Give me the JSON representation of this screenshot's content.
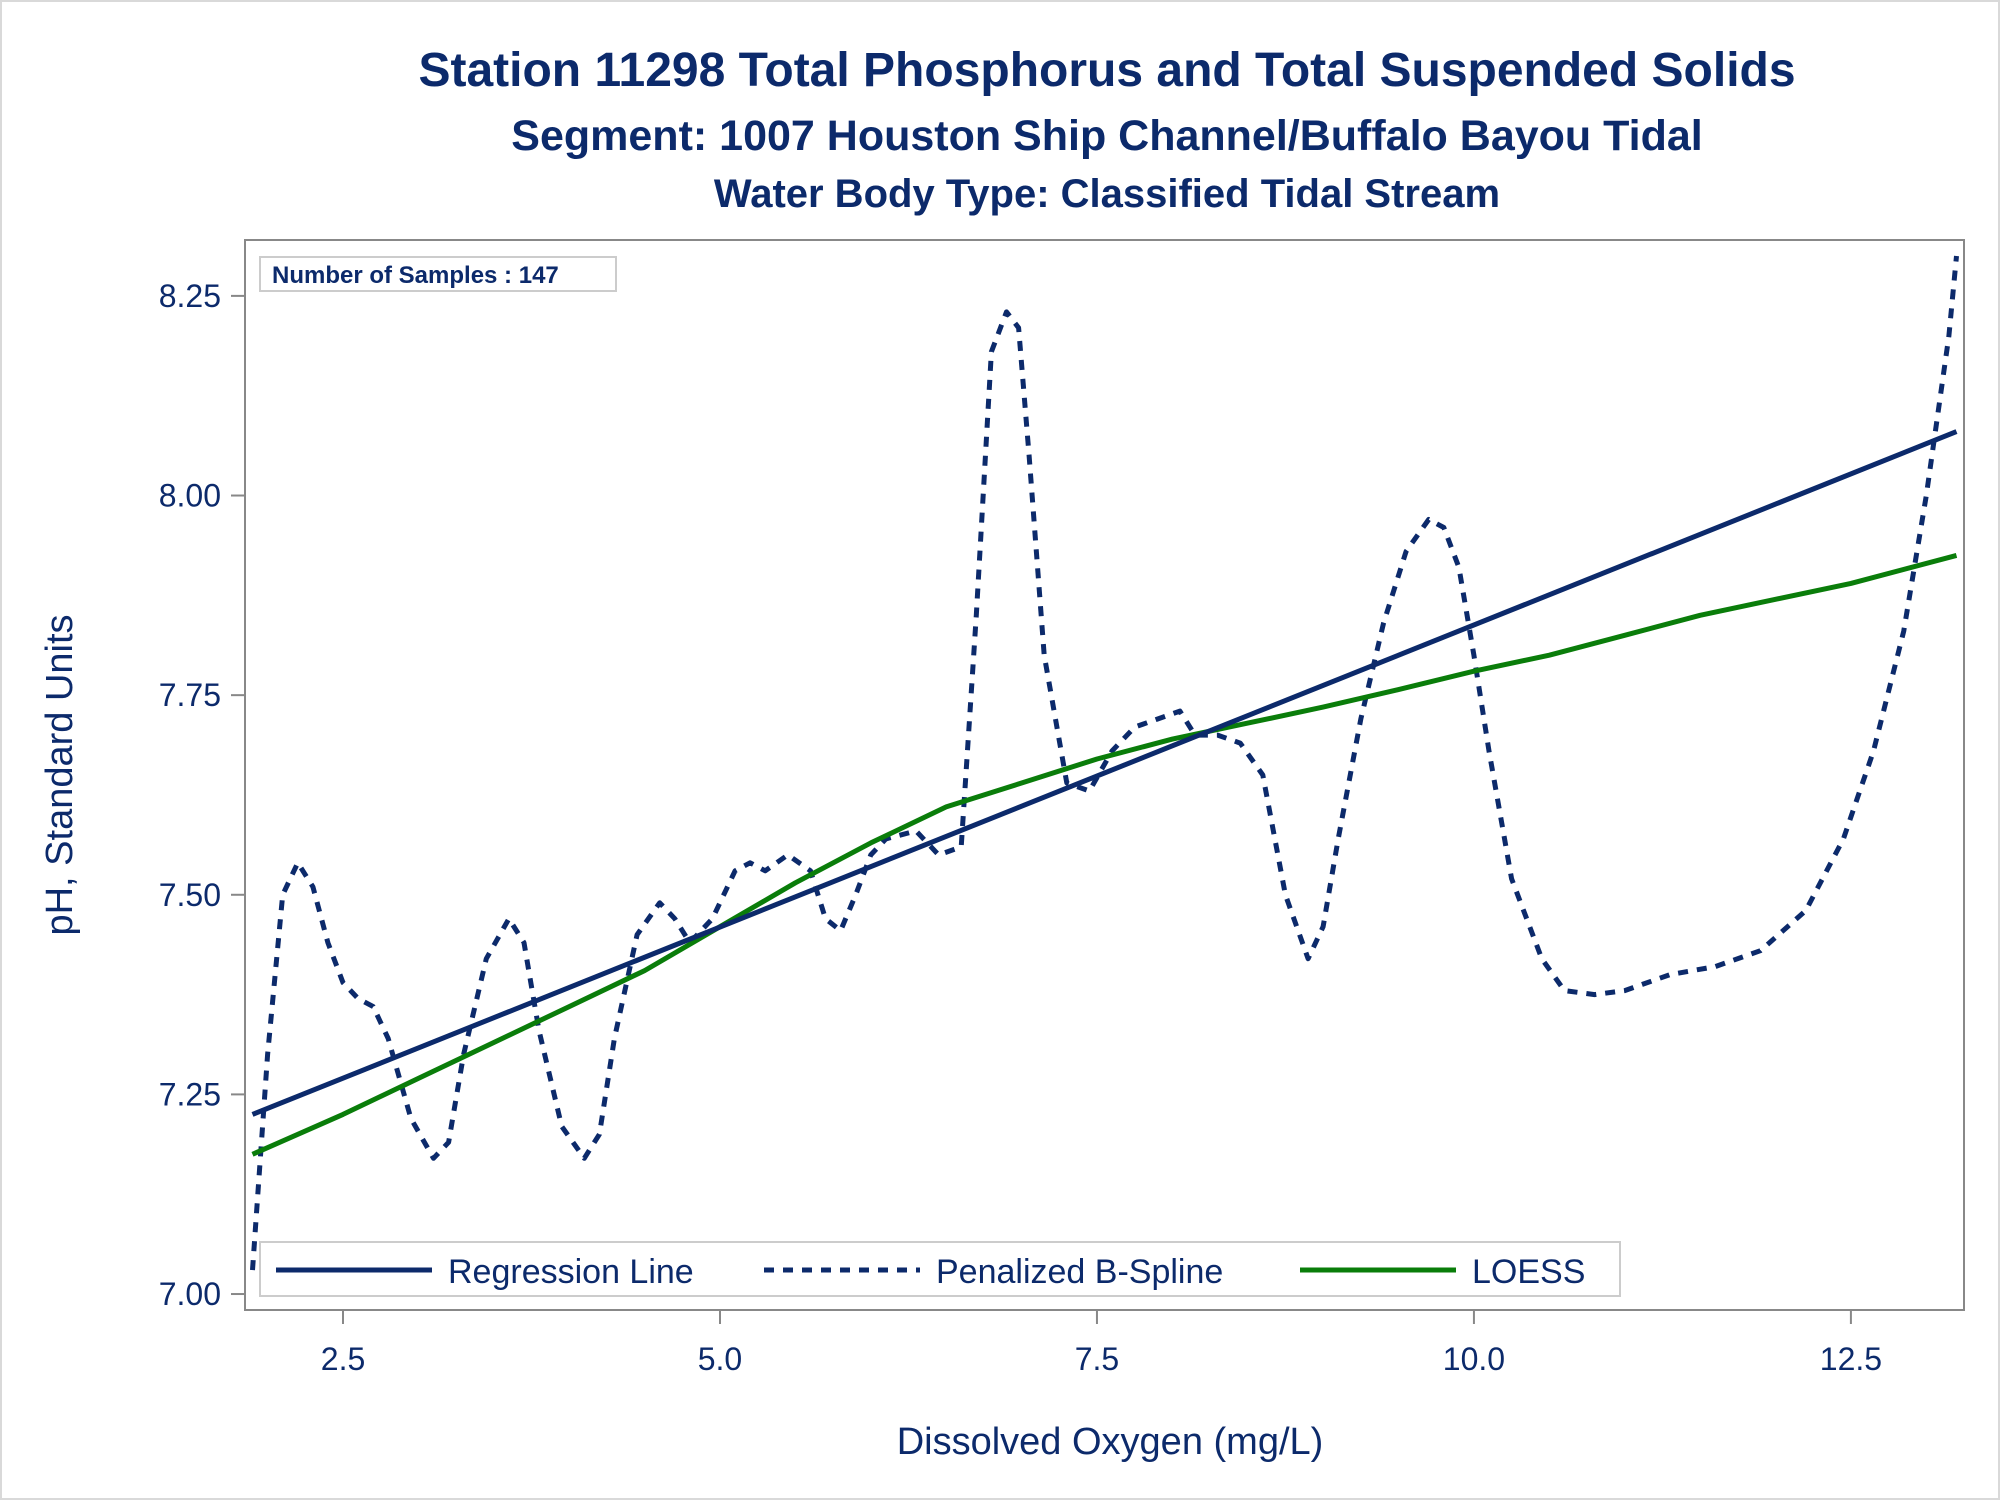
{
  "titles": {
    "line1": "Station 11298  Total Phosphorus and Total Suspended Solids",
    "line2": "Segment: 1007  Houston Ship Channel/Buffalo Bayou Tidal",
    "line3": "Water Body Type: Classified Tidal Stream"
  },
  "inset": {
    "text": "Number of Samples : 147"
  },
  "colors": {
    "text": "#0c2a6b",
    "navy": "#0c2a6b",
    "green": "#0a7d0a",
    "frame": "#d9d9d9",
    "axis": "#888888"
  },
  "chart_data": {
    "type": "line",
    "xlabel": "Dissolved Oxygen (mg/L)",
    "ylabel": "pH, Standard Units",
    "xlim": [
      1.85,
      13.25
    ],
    "ylim": [
      6.98,
      8.32
    ],
    "xticks": [
      2.5,
      5.0,
      7.5,
      10.0,
      12.5
    ],
    "xtick_labels": [
      "2.5",
      "5.0",
      "7.5",
      "10.0",
      "12.5"
    ],
    "yticks": [
      7.0,
      7.25,
      7.5,
      7.75,
      8.0,
      8.25
    ],
    "ytick_labels": [
      "7.00",
      "7.25",
      "7.50",
      "7.75",
      "8.00",
      "8.25"
    ],
    "grid": false,
    "legend_position": "bottom-left inside",
    "series": [
      {
        "name": "Regression Line",
        "style": "solid",
        "color": "#0c2a6b",
        "x": [
          1.9,
          13.2
        ],
        "y": [
          7.225,
          8.08
        ]
      },
      {
        "name": "Penalized B-Spline",
        "style": "dashed",
        "color": "#0c2a6b",
        "x": [
          1.9,
          2.0,
          2.1,
          2.2,
          2.3,
          2.4,
          2.5,
          2.6,
          2.7,
          2.8,
          2.95,
          3.1,
          3.2,
          3.3,
          3.45,
          3.6,
          3.7,
          3.8,
          3.95,
          4.1,
          4.2,
          4.3,
          4.45,
          4.6,
          4.7,
          4.8,
          4.95,
          5.1,
          5.2,
          5.3,
          5.45,
          5.6,
          5.7,
          5.8,
          5.9,
          6.0,
          6.1,
          6.3,
          6.45,
          6.6,
          6.7,
          6.8,
          6.9,
          6.98,
          7.05,
          7.15,
          7.3,
          7.45,
          7.6,
          7.75,
          7.9,
          8.05,
          8.15,
          8.3,
          8.45,
          8.6,
          8.75,
          8.9,
          9.0,
          9.1,
          9.25,
          9.4,
          9.55,
          9.7,
          9.8,
          9.9,
          10.0,
          10.1,
          10.25,
          10.45,
          10.6,
          10.8,
          11.0,
          11.3,
          11.6,
          11.9,
          12.2,
          12.45,
          12.65,
          12.85,
          13.0,
          13.15,
          13.2
        ],
        "y": [
          7.03,
          7.3,
          7.5,
          7.54,
          7.51,
          7.44,
          7.39,
          7.37,
          7.36,
          7.32,
          7.22,
          7.17,
          7.19,
          7.3,
          7.42,
          7.47,
          7.44,
          7.33,
          7.21,
          7.17,
          7.2,
          7.32,
          7.45,
          7.49,
          7.47,
          7.44,
          7.47,
          7.53,
          7.54,
          7.53,
          7.55,
          7.53,
          7.47,
          7.455,
          7.5,
          7.55,
          7.57,
          7.58,
          7.55,
          7.56,
          7.85,
          8.18,
          8.23,
          8.21,
          8.05,
          7.8,
          7.64,
          7.63,
          7.68,
          7.71,
          7.72,
          7.73,
          7.7,
          7.7,
          7.69,
          7.65,
          7.5,
          7.42,
          7.46,
          7.57,
          7.72,
          7.84,
          7.93,
          7.97,
          7.96,
          7.91,
          7.8,
          7.68,
          7.52,
          7.42,
          7.38,
          7.375,
          7.38,
          7.4,
          7.41,
          7.43,
          7.48,
          7.57,
          7.68,
          7.83,
          8.0,
          8.2,
          8.3
        ]
      },
      {
        "name": "LOESS",
        "style": "solid",
        "color": "#0a7d0a",
        "x": [
          1.9,
          2.5,
          3.0,
          3.5,
          4.0,
          4.5,
          5.0,
          5.5,
          6.0,
          6.5,
          7.0,
          7.5,
          8.0,
          8.5,
          9.0,
          9.5,
          10.0,
          10.5,
          11.0,
          11.5,
          12.0,
          12.5,
          13.2
        ],
        "y": [
          7.175,
          7.225,
          7.27,
          7.315,
          7.36,
          7.405,
          7.46,
          7.515,
          7.565,
          7.61,
          7.64,
          7.67,
          7.695,
          7.715,
          7.735,
          7.757,
          7.78,
          7.8,
          7.825,
          7.85,
          7.87,
          7.89,
          7.925
        ]
      }
    ]
  }
}
